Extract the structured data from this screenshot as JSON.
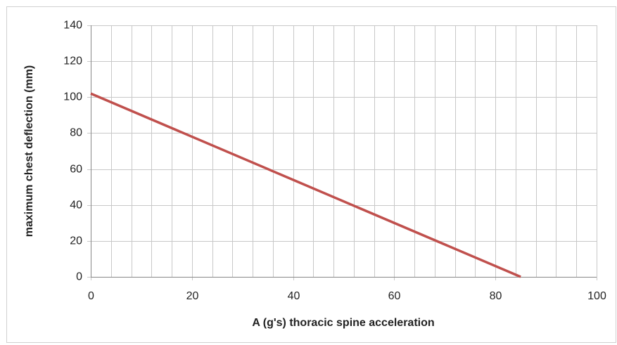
{
  "chart_data": {
    "type": "line",
    "x_label": "A (g's) thoracic spine acceleration",
    "y_label": "maximum chest deflection (mm)",
    "x": [
      0,
      85
    ],
    "series": [
      {
        "color": "#c0504d",
        "values": [
          102,
          0
        ]
      }
    ],
    "xlim": [
      0,
      100
    ],
    "xticks": [
      0,
      20,
      40,
      60,
      80,
      100
    ],
    "x_minor_ticks": [
      4,
      8,
      12,
      16,
      24,
      28,
      32,
      36,
      44,
      48,
      52,
      56,
      64,
      68,
      72,
      76,
      84,
      88,
      92,
      96
    ],
    "ylim": [
      0,
      140
    ],
    "yticks": [
      0,
      20,
      40,
      60,
      80,
      100,
      120,
      140
    ],
    "grid": true
  }
}
